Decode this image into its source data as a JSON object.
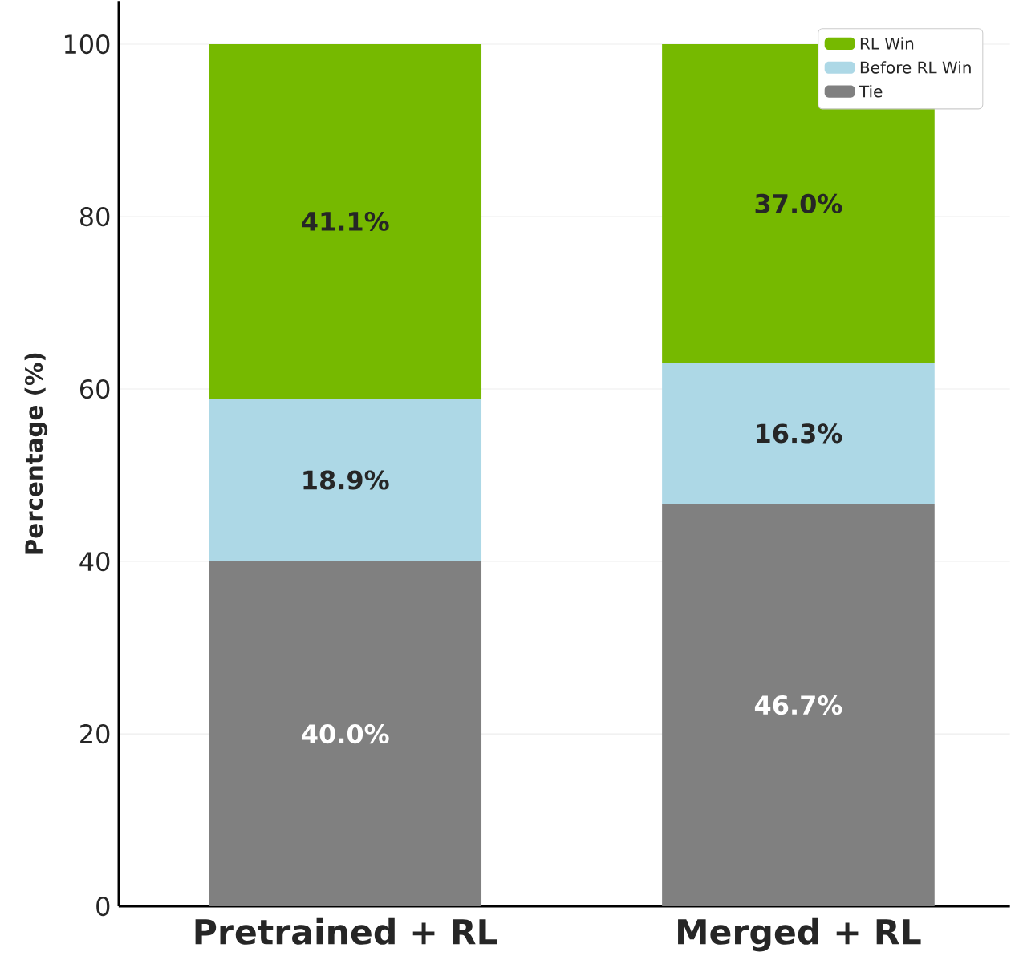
{
  "chart_data": {
    "type": "bar",
    "stacked": true,
    "ylabel": "Percentage (%)",
    "categories": [
      "Pretrained + RL",
      "Merged + RL"
    ],
    "series": [
      {
        "name": "Tie",
        "color": "#808080",
        "values": [
          40.0,
          46.7
        ],
        "value_labels": [
          "40.0%",
          "46.7%"
        ]
      },
      {
        "name": "Before RL Win",
        "color": "#add8e6",
        "values": [
          18.9,
          16.3
        ],
        "value_labels": [
          "18.9%",
          "16.3%"
        ]
      },
      {
        "name": "RL Win",
        "color": "#76b900",
        "values": [
          41.1,
          37.0
        ],
        "value_labels": [
          "41.1%",
          "37.0%"
        ]
      }
    ],
    "ylim": [
      0,
      105
    ],
    "yticks": [
      0,
      20,
      40,
      60,
      80,
      100
    ],
    "grid": "y",
    "legend": "top right"
  }
}
